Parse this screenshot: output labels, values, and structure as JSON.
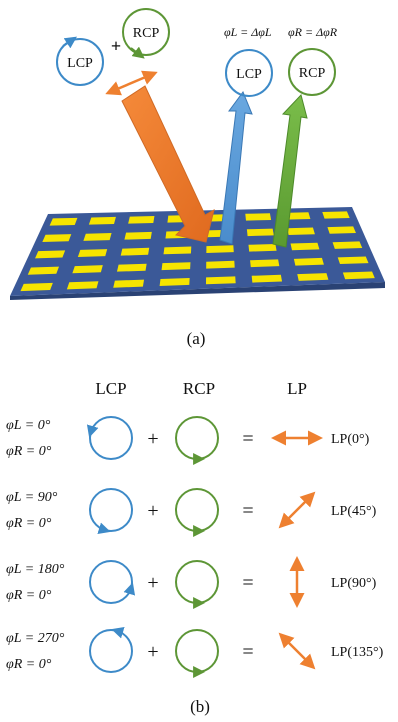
{
  "colors": {
    "lcp": "#3d8ac8",
    "rcp": "#5d9636",
    "lp_arrow": "#ee8030",
    "metasurface_base": "#3b5998",
    "metasurface_dark": "#2a4274",
    "patch": "#f6e400",
    "incident_arrow": "#ee7a2e",
    "reflect_lcp_arrow": "#5a9bd5",
    "reflect_rcp_arrow": "#6aad3c"
  },
  "panel_a": {
    "incident_lcp_label": "LCP",
    "incident_rcp_label": "RCP",
    "plus_symbol": "+",
    "phase_left": "φL = ΔφL",
    "phase_right": "φR = ΔφR",
    "reflected_lcp_label": "LCP",
    "reflected_rcp_label": "RCP",
    "caption": "(a)"
  },
  "panel_b": {
    "headers": {
      "lcp": "LCP",
      "rcp": "RCP",
      "lp": "LP"
    },
    "rows": [
      {
        "phi_l": "φL = 0°",
        "phi_r": "φR = 0°",
        "plus": "+",
        "equals": "=",
        "lp_label": "LP(0°)",
        "lp_angle_deg": 0
      },
      {
        "phi_l": "φL = 90°",
        "phi_r": "φR = 0°",
        "plus": "+",
        "equals": "=",
        "lp_label": "LP(45°)",
        "lp_angle_deg": 45
      },
      {
        "phi_l": "φL = 180°",
        "phi_r": "φR = 0°",
        "plus": "+",
        "equals": "=",
        "lp_label": "LP(90°)",
        "lp_angle_deg": 90
      },
      {
        "phi_l": "φL = 270°",
        "phi_r": "φR = 0°",
        "plus": "+",
        "equals": "=",
        "lp_label": "LP(135°)",
        "lp_angle_deg": 135
      }
    ],
    "caption": "(b)"
  }
}
